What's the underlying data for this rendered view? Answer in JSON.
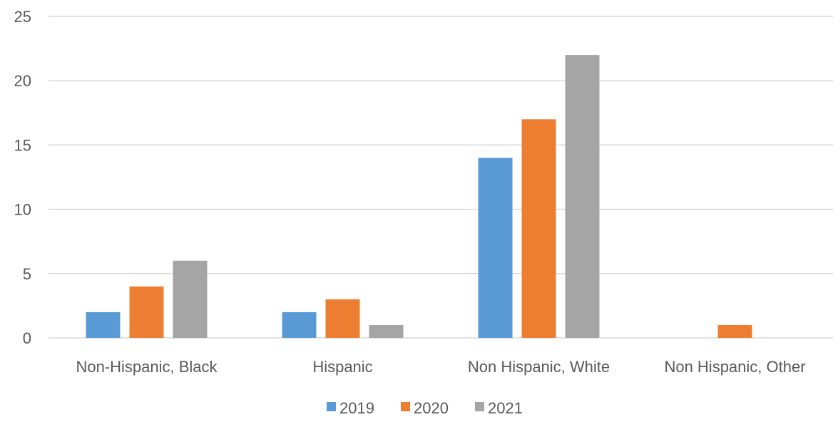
{
  "chart_data": {
    "type": "bar",
    "title": "",
    "xlabel": "",
    "ylabel": "",
    "categories": [
      "Non-Hispanic, Black",
      "Hispanic",
      "Non Hispanic, White",
      "Non Hispanic, Other"
    ],
    "series": [
      {
        "name": "2019",
        "color": "#5b9bd5",
        "values": [
          2,
          2,
          14,
          0
        ]
      },
      {
        "name": "2020",
        "color": "#ed7d31",
        "values": [
          4,
          3,
          17,
          1
        ]
      },
      {
        "name": "2021",
        "color": "#a5a5a5",
        "values": [
          6,
          1,
          22,
          0
        ]
      }
    ],
    "ylim": [
      0,
      25
    ],
    "yticks": [
      "0",
      "5",
      "10",
      "15",
      "20",
      "25"
    ],
    "grid": true,
    "legend_position": "bottom"
  }
}
